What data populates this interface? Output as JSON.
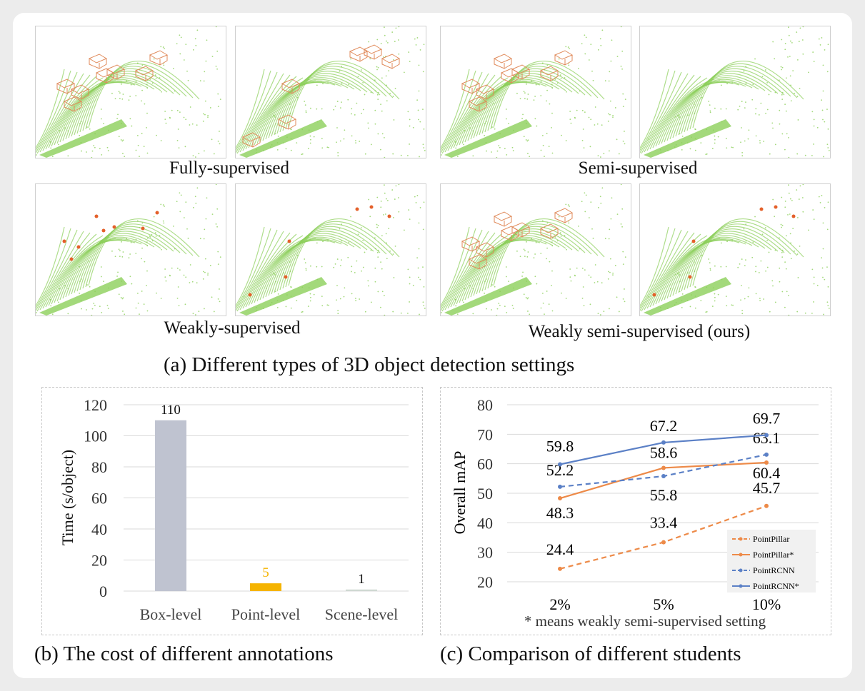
{
  "panels": {
    "fully_supervised": "Fully-supervised",
    "semi_supervised": "Semi-supervised",
    "weakly_supervised": "Weakly-supervised",
    "weakly_semi_supervised": "Weakly semi-supervised (ours)"
  },
  "captions": {
    "a": "(a) Different types of 3D object detection settings",
    "b": "(b) The cost of different annotations",
    "c": "(c) Comparison of different students"
  },
  "colors": {
    "point_cloud": "#8ccf5a",
    "box": "#e08a5a",
    "point": "#e4602a",
    "bar_box": "#bfc3d0",
    "bar_point": "#f5b400",
    "bar_scene": "#cfd8d2",
    "pointpillar": "#ed8a48",
    "pointrcnn": "#5b80c6"
  },
  "chart_data": [
    {
      "type": "bar",
      "categories": [
        "Box-level",
        "Point-level",
        "Scene-level"
      ],
      "values": [
        110,
        5,
        1
      ],
      "data_labels": [
        "110",
        "5",
        "1"
      ],
      "ylabel": "Time (s/object)",
      "xlabel": "",
      "ylim": [
        0,
        120
      ],
      "yticks": [
        "0",
        "20",
        "40",
        "60",
        "80",
        "100",
        "120"
      ],
      "grid": true
    },
    {
      "type": "line",
      "categories": [
        "2%",
        "5%",
        "10%"
      ],
      "ylabel": "Overall  mAP",
      "xlabel": "* means weakly semi-supervised setting",
      "ylim": [
        20,
        80
      ],
      "yticks": [
        "20",
        "30",
        "40",
        "50",
        "60",
        "70",
        "80"
      ],
      "grid": true,
      "legend_placement": "bottom-right",
      "series": [
        {
          "name": "PointPillar",
          "values": [
            24.4,
            33.4,
            45.7
          ],
          "style": "dashed",
          "color": "#ed8a48"
        },
        {
          "name": "PointPillar*",
          "values": [
            48.3,
            58.6,
            60.4
          ],
          "style": "solid",
          "color": "#ed8a48"
        },
        {
          "name": "PointRCNN",
          "values": [
            52.2,
            55.8,
            63.1
          ],
          "style": "dashed",
          "color": "#5b80c6"
        },
        {
          "name": "PointRCNN*",
          "values": [
            59.8,
            67.2,
            69.7
          ],
          "style": "solid",
          "color": "#5b80c6"
        }
      ]
    }
  ]
}
